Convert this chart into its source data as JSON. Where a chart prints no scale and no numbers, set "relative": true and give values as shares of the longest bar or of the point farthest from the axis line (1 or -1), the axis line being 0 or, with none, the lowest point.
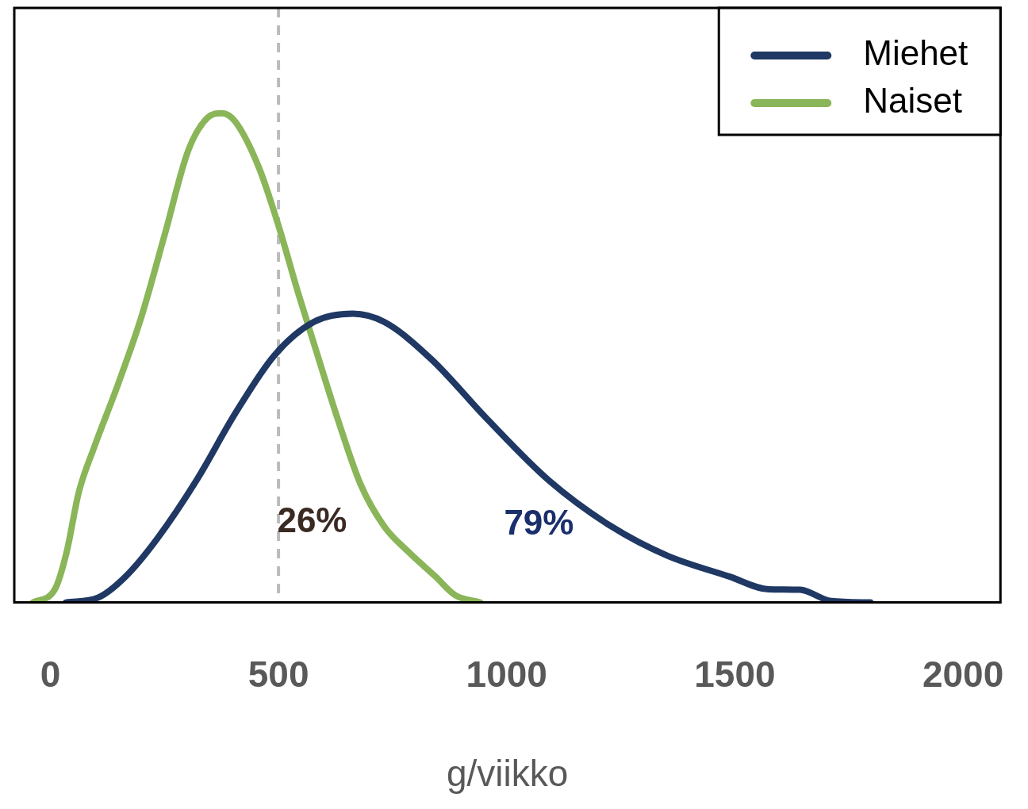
{
  "chart_data": {
    "type": "line",
    "relative": true,
    "xlabel": "g/viikko",
    "xlim": [
      -79,
      2082
    ],
    "xticks": [
      0,
      500,
      1000,
      1500,
      2000
    ],
    "legend": "top right",
    "grid": false,
    "marker": "none",
    "line_style": "solid",
    "series": [
      {
        "name": "Miehet",
        "color": "#1f3864",
        "x": [
          34,
          105,
          165,
          234,
          320,
          405,
          491,
          577,
          663,
          732,
          835,
          955,
          1093,
          1230,
          1351,
          1488,
          1574,
          1643,
          1711,
          1797
        ],
        "values": [
          0,
          0.01,
          0.053,
          0.13,
          0.249,
          0.386,
          0.505,
          0.573,
          0.59,
          0.573,
          0.497,
          0.377,
          0.249,
          0.155,
          0.096,
          0.053,
          0.027,
          0.026,
          0.003,
          0
        ]
      },
      {
        "name": "Naiset",
        "color": "#8ab558",
        "x": [
          -38,
          10,
          36,
          62,
          96,
          148,
          199,
          251,
          302,
          345,
          376,
          405,
          457,
          500,
          543,
          577,
          629,
          680,
          732,
          784,
          844,
          887,
          942
        ],
        "values": [
          0,
          0.027,
          0.104,
          0.224,
          0.317,
          0.445,
          0.582,
          0.753,
          0.923,
          0.991,
          1,
          0.983,
          0.889,
          0.77,
          0.633,
          0.531,
          0.377,
          0.241,
          0.155,
          0.104,
          0.053,
          0.015,
          0
        ]
      }
    ],
    "ref_lines": [
      {
        "axis": "x",
        "value": 500,
        "color": "#bbbbbb",
        "line_style": "dashed"
      }
    ],
    "annotations": [
      "26%",
      "79%"
    ]
  }
}
